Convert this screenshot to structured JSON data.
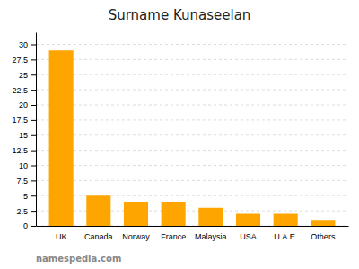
{
  "chart_data": {
    "type": "bar",
    "title": "Surname Kunaseelan",
    "categories": [
      "UK",
      "Canada",
      "Norway",
      "France",
      "Malaysia",
      "USA",
      "U.A.E.",
      "Others"
    ],
    "values": [
      29,
      5,
      4,
      4,
      3,
      2,
      2,
      1
    ],
    "color": "#FFA500",
    "ylim": [
      0,
      32
    ],
    "yticks": [
      0,
      2.5,
      5,
      7.5,
      10,
      12.5,
      15,
      17.5,
      20,
      22.5,
      25,
      27.5,
      30
    ],
    "grid": true,
    "annotation": "namespedia.com"
  }
}
